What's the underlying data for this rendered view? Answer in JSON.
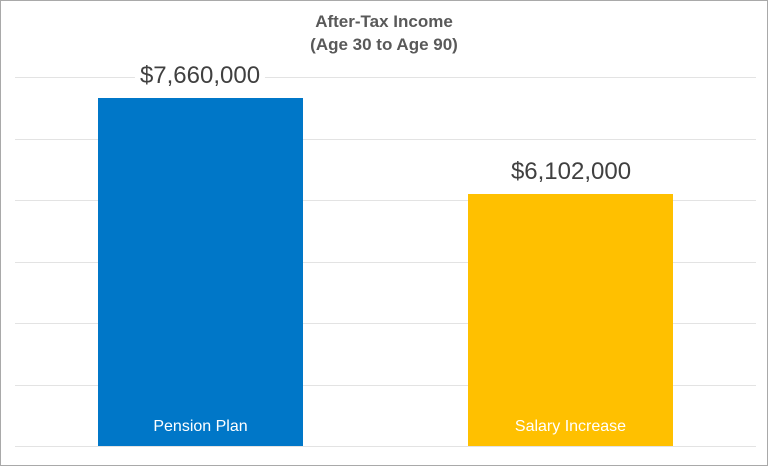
{
  "chart_data": {
    "type": "bar",
    "title": "After-Tax Income",
    "subtitle": "(Age 30 to Age 90)",
    "categories": [
      "Pension Plan",
      "Salary Increase"
    ],
    "values": [
      7660000,
      6102000
    ],
    "value_labels": [
      "$7,660,000",
      "$6,102,000"
    ],
    "bar_colors": [
      "#0077C8",
      "#FFC000"
    ],
    "ylim": [
      2000000,
      8000000
    ],
    "gridline_step": 1000000,
    "grid": true,
    "legend_position": "none",
    "y_axis_tick_labels_visible": false,
    "x_axis_tick_labels_visible": false,
    "category_label_placement": "inside-bar-bottom",
    "value_label_placement": "above-bar",
    "title_color": "#595959",
    "value_label_color": "#404040",
    "category_label_color": "#FFFFFF",
    "gridline_color": "#E3E3E3",
    "background_color": "#FFFFFF",
    "border_color": "#A9A9A9"
  }
}
